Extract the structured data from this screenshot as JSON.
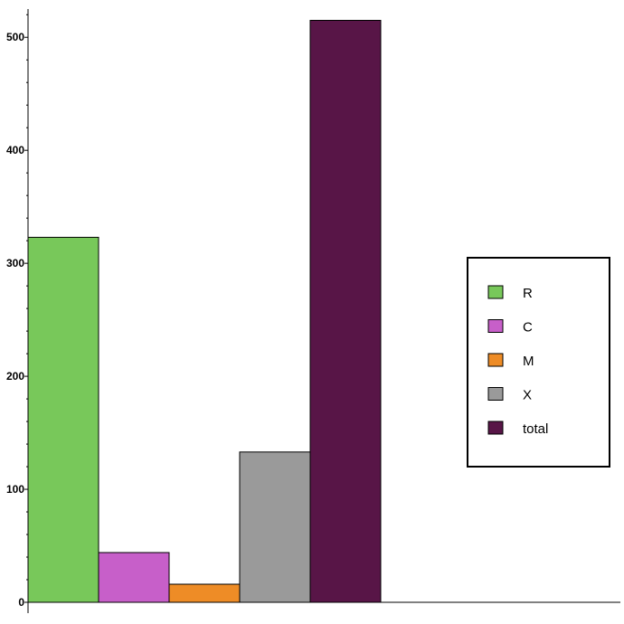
{
  "chart_data": {
    "type": "bar",
    "categories": [
      "R",
      "C",
      "M",
      "X",
      "total"
    ],
    "values": [
      323,
      44,
      16,
      133,
      515
    ],
    "colors": [
      "#78c85a",
      "#c75fc9",
      "#ee8c26",
      "#9a9a9a",
      "#581547"
    ],
    "title": "",
    "xlabel": "",
    "ylabel": "",
    "ylim": [
      0,
      525
    ],
    "yticks": [
      0,
      100,
      200,
      300,
      400,
      500
    ],
    "grid": false,
    "legend": {
      "placement": "right",
      "entries": [
        "R",
        "C",
        "M",
        "X",
        "total"
      ]
    }
  }
}
